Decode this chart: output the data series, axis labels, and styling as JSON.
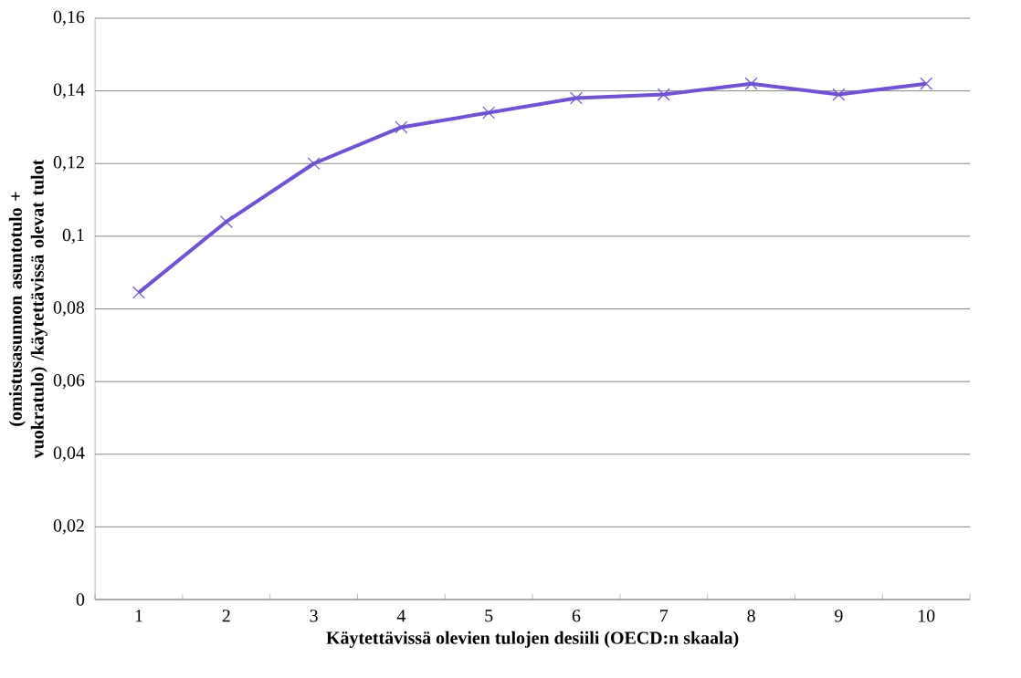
{
  "chart_data": {
    "type": "line",
    "xlabel": "Käytettävissä olevien tulojen desiili (OECD:n skaala)",
    "ylabel": "(omistusasunnon asuntotulo + vuokratulo) /käytettävissä olevat tulot",
    "categories": [
      "1",
      "2",
      "3",
      "4",
      "5",
      "6",
      "7",
      "8",
      "9",
      "10"
    ],
    "series": [
      {
        "color": "#7052d2",
        "values": [
          0.0845,
          0.104,
          0.12,
          0.13,
          0.134,
          0.138,
          0.139,
          0.142,
          0.139,
          0.142
        ]
      }
    ],
    "ylim": [
      0,
      0.16
    ],
    "yticks": [
      0,
      {
        "value": 0.02,
        "label": "0,02"
      },
      {
        "value": 0.04,
        "label": "0,04"
      },
      {
        "value": 0.06,
        "label": "0,06"
      },
      {
        "value": 0.08,
        "label": "0,08"
      },
      {
        "value": 0.1,
        "label": "0,1"
      },
      {
        "value": 0.12,
        "label": "0,12"
      },
      {
        "value": 0.14,
        "label": "0,14"
      },
      {
        "value": 0.16,
        "label": "0,16"
      }
    ],
    "grid": "y",
    "marker": "cross",
    "line_style": "solid"
  }
}
